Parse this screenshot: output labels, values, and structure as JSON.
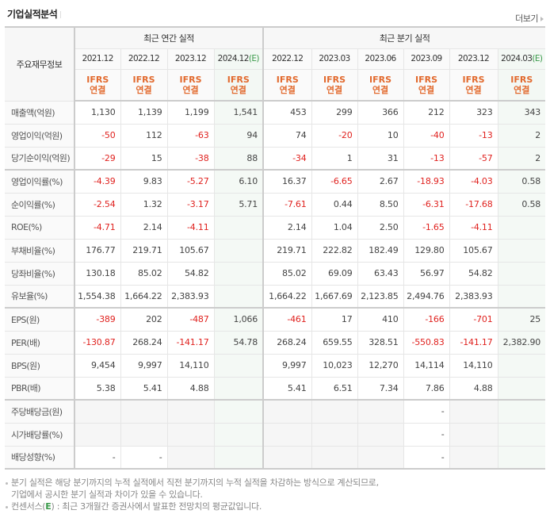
{
  "header": {
    "title": "기업실적분석",
    "more_label": "더보기"
  },
  "table": {
    "label_header": "주요재무정보",
    "group_annual": "최근 연간 실적",
    "group_quarter": "최근 분기 실적",
    "annual_periods": [
      {
        "period": "2021.12",
        "est": ""
      },
      {
        "period": "2022.12",
        "est": ""
      },
      {
        "period": "2023.12",
        "est": ""
      },
      {
        "period": "2024.12",
        "est": "(E)"
      }
    ],
    "quarter_periods": [
      {
        "period": "2022.12",
        "est": ""
      },
      {
        "period": "2023.03",
        "est": ""
      },
      {
        "period": "2023.06",
        "est": ""
      },
      {
        "period": "2023.09",
        "est": ""
      },
      {
        "period": "2023.12",
        "est": ""
      },
      {
        "period": "2024.03",
        "est": "(E)"
      }
    ],
    "standard_line1": "IFRS",
    "standard_line2": "연결",
    "rows": [
      {
        "label": "매출액(억원)",
        "annual": [
          "1,130",
          "1,139",
          "1,199",
          "1,541"
        ],
        "quarter": [
          "453",
          "299",
          "366",
          "212",
          "323",
          "343"
        ]
      },
      {
        "label": "영업이익(억원)",
        "annual": [
          "-50",
          "112",
          "-63",
          "94"
        ],
        "quarter": [
          "74",
          "-20",
          "10",
          "-40",
          "-13",
          "2"
        ]
      },
      {
        "label": "당기순이익(억원)",
        "annual": [
          "-29",
          "15",
          "-38",
          "88"
        ],
        "quarter": [
          "-34",
          "1",
          "31",
          "-13",
          "-57",
          "2"
        ]
      },
      {
        "label": "영업이익률(%)",
        "annual": [
          "-4.39",
          "9.83",
          "-5.27",
          "6.10"
        ],
        "quarter": [
          "16.37",
          "-6.65",
          "2.67",
          "-18.93",
          "-4.03",
          "0.58"
        ]
      },
      {
        "label": "순이익률(%)",
        "annual": [
          "-2.54",
          "1.32",
          "-3.17",
          "5.71"
        ],
        "quarter": [
          "-7.61",
          "0.44",
          "8.50",
          "-6.31",
          "-17.68",
          "0.58"
        ]
      },
      {
        "label": "ROE(%)",
        "annual": [
          "-4.71",
          "2.14",
          "-4.11",
          ""
        ],
        "quarter": [
          "2.14",
          "1.04",
          "2.50",
          "-1.65",
          "-4.11",
          ""
        ]
      },
      {
        "label": "부채비율(%)",
        "annual": [
          "176.77",
          "219.71",
          "105.67",
          ""
        ],
        "quarter": [
          "219.71",
          "222.82",
          "182.49",
          "129.80",
          "105.67",
          ""
        ]
      },
      {
        "label": "당좌비율(%)",
        "annual": [
          "130.18",
          "85.02",
          "54.82",
          ""
        ],
        "quarter": [
          "85.02",
          "69.09",
          "63.43",
          "56.97",
          "54.82",
          ""
        ]
      },
      {
        "label": "유보율(%)",
        "annual": [
          "1,554.38",
          "1,664.22",
          "2,383.93",
          ""
        ],
        "quarter": [
          "1,664.22",
          "1,667.69",
          "2,123.85",
          "2,494.76",
          "2,383.93",
          ""
        ]
      },
      {
        "label": "EPS(원)",
        "annual": [
          "-389",
          "202",
          "-487",
          "1,066"
        ],
        "quarter": [
          "-461",
          "17",
          "410",
          "-166",
          "-701",
          "25"
        ]
      },
      {
        "label": "PER(배)",
        "annual": [
          "-130.87",
          "268.24",
          "-141.17",
          "54.78"
        ],
        "quarter": [
          "268.24",
          "659.55",
          "328.51",
          "-550.83",
          "-141.17",
          "2,382.90"
        ]
      },
      {
        "label": "BPS(원)",
        "annual": [
          "9,454",
          "9,997",
          "14,110",
          ""
        ],
        "quarter": [
          "9,997",
          "10,023",
          "12,270",
          "14,114",
          "14,110",
          ""
        ]
      },
      {
        "label": "PBR(배)",
        "annual": [
          "5.38",
          "5.41",
          "4.88",
          ""
        ],
        "quarter": [
          "5.41",
          "6.51",
          "7.34",
          "7.86",
          "4.88",
          ""
        ]
      },
      {
        "label": "주당배당금(원)",
        "annual": [
          "",
          "",
          "",
          ""
        ],
        "quarter": [
          "",
          "",
          "",
          "-",
          "",
          ""
        ]
      },
      {
        "label": "시가배당률(%)",
        "annual": [
          "",
          "",
          "",
          ""
        ],
        "quarter": [
          "",
          "",
          "",
          "-",
          "",
          ""
        ]
      },
      {
        "label": "배당성향(%)",
        "annual": [
          "-",
          "-",
          "",
          ""
        ],
        "quarter": [
          "",
          "",
          "",
          "-",
          "",
          ""
        ]
      }
    ]
  },
  "notes": {
    "line1": "분기 실적은 해당 분기까지의 누적 실적에서 직전 분기까지의 누적 실적을 차감하는 방식으로 계산되므로,",
    "line2": "기업에서 공시한 분기 실적과 차이가 있을 수 있습니다.",
    "line3_prefix": "컨센서스(",
    "line3_e": "E",
    "line3_suffix": ") : 최근 3개월간 증권사에서 발표한 전망치의 평균값입니다."
  },
  "colors": {
    "negative": "#e0221f",
    "ifrs": "#e2692d",
    "estimate_bg": "#f4f9f5",
    "estimate_mark": "#3a9a4a"
  }
}
